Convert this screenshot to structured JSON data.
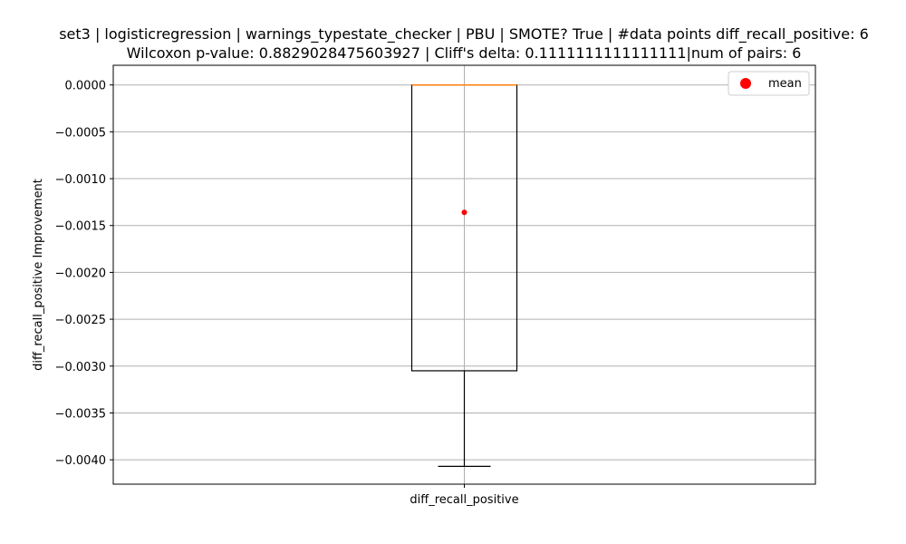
{
  "chart_data": {
    "type": "box",
    "title_line1": "set3 | logisticregression | warnings_typestate_checker | PBU | SMOTE? True | #data points diff_recall_positive: 6",
    "title_line2": "Wilcoxon p-value: 0.8829028475603927 | Cliff's delta: 0.1111111111111111|num of pairs: 6",
    "xlabel": "",
    "ylabel": "diff_recall_positive Improvement",
    "categories": [
      "diff_recall_positive"
    ],
    "ylim": [
      -0.00426,
      0.00021
    ],
    "yticks": [
      0.0,
      -0.0005,
      -0.001,
      -0.0015,
      -0.002,
      -0.0025,
      -0.003,
      -0.0035,
      -0.004
    ],
    "ytick_labels": [
      "0.0000",
      "−0.0005",
      "−0.0010",
      "−0.0015",
      "−0.0020",
      "−0.0025",
      "−0.0030",
      "−0.0035",
      "−0.0040"
    ],
    "box": {
      "whisker_low": -0.00407,
      "q1": -0.00305,
      "median": 0.0,
      "q3": 0.0,
      "whisker_high": 0.0,
      "mean": -0.00136
    },
    "grid": true,
    "legend": {
      "position": "top-right",
      "label": "mean"
    },
    "colors": {
      "box": "#000000",
      "median": "#ff7f0e",
      "mean": "#ff0000",
      "grid": "#b0b0b0"
    }
  }
}
